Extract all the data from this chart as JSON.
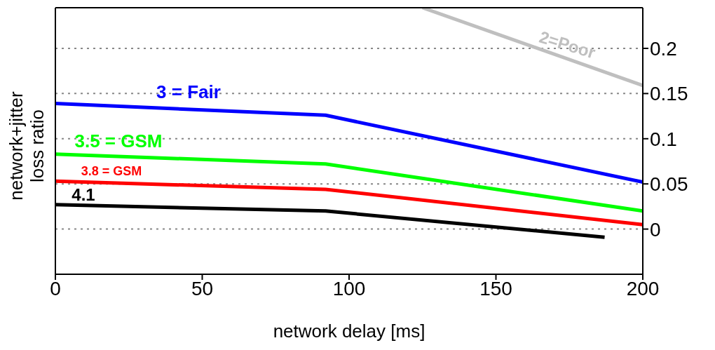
{
  "chart_data": {
    "type": "line",
    "xlabel": "network delay [ms]",
    "ylabel": "network+jitter loss ratio",
    "xlim": [
      0,
      200
    ],
    "xticks": [
      0,
      50,
      100,
      150,
      200
    ],
    "ylim": [
      -0.05,
      0.245
    ],
    "yticks": [
      0,
      0.05,
      0.1,
      0.15,
      0.2
    ],
    "grid": "y",
    "marker": "none",
    "line_style": "solid",
    "series": [
      {
        "name": "3 = Fair",
        "color": "#0000ff",
        "x": [
          0,
          92,
          200
        ],
        "values": [
          0.139,
          0.126,
          0.052
        ]
      },
      {
        "name": "3.5 = GSM",
        "color": "#00ff00",
        "x": [
          0,
          92,
          200
        ],
        "values": [
          0.083,
          0.072,
          0.02
        ]
      },
      {
        "name": "3.8 = GSM",
        "color": "#ff0000",
        "x": [
          0,
          92,
          200
        ],
        "values": [
          0.053,
          0.044,
          0.005
        ]
      },
      {
        "name": "4.1",
        "color": "#000000",
        "x": [
          0,
          92,
          187
        ],
        "values": [
          0.027,
          0.02,
          -0.009
        ]
      },
      {
        "name": "2=Poor",
        "color": "#bfbfbf",
        "x": [
          125,
          200
        ],
        "values": [
          0.245,
          0.159
        ]
      }
    ]
  }
}
